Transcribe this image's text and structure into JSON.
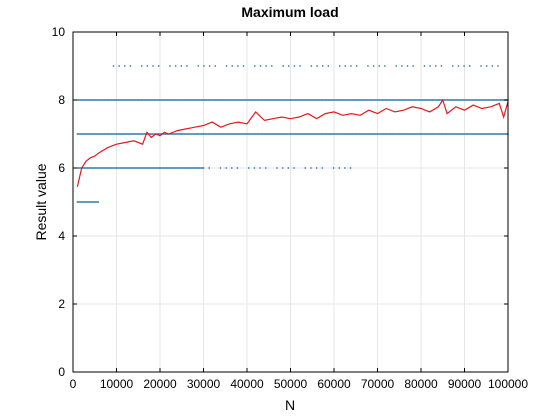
{
  "chart_data": {
    "type": "scatter",
    "title": "Maximum load",
    "xlabel": "N",
    "ylabel": "Result value",
    "xlim": [
      0,
      100000
    ],
    "ylim": [
      0,
      10
    ],
    "x_ticks": [
      0,
      10000,
      20000,
      30000,
      40000,
      50000,
      60000,
      70000,
      80000,
      90000,
      100000
    ],
    "y_ticks": [
      0,
      2,
      4,
      6,
      8,
      10
    ],
    "grid": true,
    "colors": {
      "scatter": "#1f6f9f",
      "line": "#e41a1c"
    },
    "scatter_bands": [
      {
        "y": 5,
        "x_start": 1000,
        "x_end": 6000,
        "density": "dense"
      },
      {
        "y": 6,
        "x_start": 1000,
        "x_end": 30000,
        "density": "dense"
      },
      {
        "y": 6,
        "x_start": 30000,
        "x_end": 66000,
        "density": "sparse"
      },
      {
        "y": 7,
        "x_start": 1000,
        "x_end": 100000,
        "density": "dense"
      },
      {
        "y": 8,
        "x_start": 1000,
        "x_end": 100000,
        "density": "dense"
      },
      {
        "y": 9,
        "x_start": 8000,
        "x_end": 100000,
        "density": "sparse"
      }
    ],
    "series": [
      {
        "type": "line",
        "x": [
          1000,
          2000,
          3000,
          4000,
          5000,
          6000,
          8000,
          10000,
          12000,
          14000,
          16000,
          17000,
          18000,
          19000,
          20000,
          21000,
          22000,
          24000,
          26000,
          28000,
          30000,
          32000,
          34000,
          36000,
          38000,
          40000,
          42000,
          44000,
          46000,
          48000,
          50000,
          52000,
          54000,
          56000,
          58000,
          60000,
          62000,
          64000,
          66000,
          68000,
          70000,
          72000,
          74000,
          76000,
          78000,
          80000,
          82000,
          84000,
          85000,
          86000,
          88000,
          90000,
          92000,
          94000,
          96000,
          98000,
          99000,
          100000
        ],
        "y": [
          5.45,
          6.0,
          6.2,
          6.3,
          6.35,
          6.45,
          6.6,
          6.7,
          6.75,
          6.8,
          6.7,
          7.05,
          6.9,
          7.0,
          6.95,
          7.05,
          7.0,
          7.1,
          7.15,
          7.2,
          7.25,
          7.35,
          7.2,
          7.3,
          7.35,
          7.3,
          7.65,
          7.4,
          7.45,
          7.5,
          7.45,
          7.5,
          7.6,
          7.45,
          7.6,
          7.65,
          7.55,
          7.6,
          7.55,
          7.7,
          7.6,
          7.75,
          7.65,
          7.7,
          7.8,
          7.75,
          7.65,
          7.8,
          8.0,
          7.6,
          7.8,
          7.7,
          7.85,
          7.75,
          7.8,
          7.9,
          7.5,
          7.95
        ]
      }
    ]
  }
}
